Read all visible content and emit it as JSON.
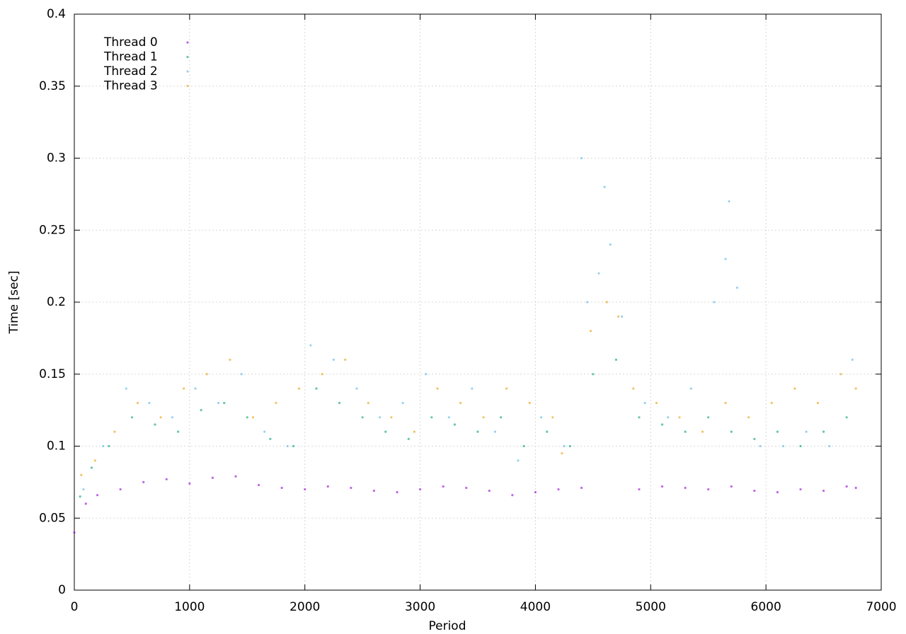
{
  "chart_data": {
    "type": "scatter",
    "x_label": "Period",
    "y_label": "Time [sec]",
    "xlim": [
      0,
      7000
    ],
    "ylim": [
      0,
      0.4
    ],
    "xticks": [
      0,
      1000,
      2000,
      3000,
      4000,
      5000,
      6000,
      7000
    ],
    "yticks": [
      0,
      0.05,
      0.1,
      0.15,
      0.2,
      0.25,
      0.3,
      0.35,
      0.4
    ],
    "grid": true,
    "legend": "top-left",
    "series": [
      {
        "name": "Thread 0",
        "color": "#9400d3",
        "x": [
          0,
          100,
          200,
          400,
          600,
          800,
          1000,
          1200,
          1400,
          1600,
          1800,
          2000,
          2200,
          2400,
          2600,
          2800,
          3000,
          3200,
          3400,
          3600,
          3800,
          4000,
          4200,
          4400,
          4900,
          5100,
          5300,
          5500,
          5700,
          5900,
          6100,
          6300,
          6500,
          6700,
          6780
        ],
        "values": [
          0.04,
          0.06,
          0.066,
          0.07,
          0.075,
          0.077,
          0.074,
          0.078,
          0.079,
          0.073,
          0.071,
          0.07,
          0.072,
          0.071,
          0.069,
          0.068,
          0.07,
          0.072,
          0.071,
          0.069,
          0.066,
          0.068,
          0.07,
          0.071,
          0.07,
          0.072,
          0.071,
          0.07,
          0.072,
          0.069,
          0.068,
          0.07,
          0.069,
          0.072,
          0.071
        ]
      },
      {
        "name": "Thread 1",
        "color": "#009e73",
        "x": [
          50,
          150,
          300,
          500,
          700,
          900,
          1100,
          1300,
          1500,
          1700,
          1900,
          2100,
          2300,
          2500,
          2700,
          2900,
          3100,
          3300,
          3500,
          3700,
          3900,
          4100,
          4300,
          4500,
          4700,
          4900,
          5100,
          5300,
          5500,
          5700,
          5900,
          6100,
          6300,
          6500,
          6700
        ],
        "values": [
          0.065,
          0.085,
          0.1,
          0.12,
          0.115,
          0.11,
          0.125,
          0.13,
          0.12,
          0.105,
          0.1,
          0.14,
          0.13,
          0.12,
          0.11,
          0.105,
          0.12,
          0.115,
          0.11,
          0.12,
          0.1,
          0.11,
          0.1,
          0.15,
          0.16,
          0.12,
          0.115,
          0.11,
          0.12,
          0.11,
          0.105,
          0.11,
          0.1,
          0.11,
          0.12
        ]
      },
      {
        "name": "Thread 2",
        "color": "#56b4e9",
        "x": [
          80,
          250,
          450,
          650,
          850,
          1050,
          1250,
          1450,
          1650,
          1850,
          2050,
          2250,
          2450,
          2650,
          2850,
          3050,
          3250,
          3450,
          3650,
          3850,
          4050,
          4250,
          4450,
          4550,
          4650,
          4750,
          4950,
          5150,
          5350,
          5550,
          5650,
          5750,
          5950,
          6150,
          6350,
          6550,
          6750,
          4600,
          5680,
          4400
        ],
        "values": [
          0.07,
          0.1,
          0.14,
          0.13,
          0.12,
          0.14,
          0.13,
          0.15,
          0.11,
          0.1,
          0.17,
          0.16,
          0.14,
          0.12,
          0.13,
          0.15,
          0.12,
          0.14,
          0.11,
          0.09,
          0.12,
          0.1,
          0.2,
          0.22,
          0.24,
          0.19,
          0.13,
          0.12,
          0.14,
          0.2,
          0.23,
          0.21,
          0.1,
          0.1,
          0.11,
          0.1,
          0.16,
          0.28,
          0.27,
          0.3
        ]
      },
      {
        "name": "Thread 3",
        "color": "#e69f00",
        "x": [
          60,
          180,
          350,
          550,
          750,
          950,
          1150,
          1350,
          1550,
          1750,
          1950,
          2150,
          2350,
          2550,
          2750,
          2950,
          3150,
          3350,
          3550,
          3750,
          3950,
          4150,
          4230,
          4480,
          4620,
          4720,
          4850,
          5050,
          5250,
          5450,
          5650,
          5850,
          6050,
          6250,
          6450,
          6650,
          6780
        ],
        "values": [
          0.08,
          0.09,
          0.11,
          0.13,
          0.12,
          0.14,
          0.15,
          0.16,
          0.12,
          0.13,
          0.14,
          0.15,
          0.16,
          0.13,
          0.12,
          0.11,
          0.14,
          0.13,
          0.12,
          0.14,
          0.13,
          0.12,
          0.095,
          0.18,
          0.2,
          0.19,
          0.14,
          0.13,
          0.12,
          0.11,
          0.13,
          0.12,
          0.13,
          0.14,
          0.13,
          0.15,
          0.14
        ]
      }
    ]
  }
}
